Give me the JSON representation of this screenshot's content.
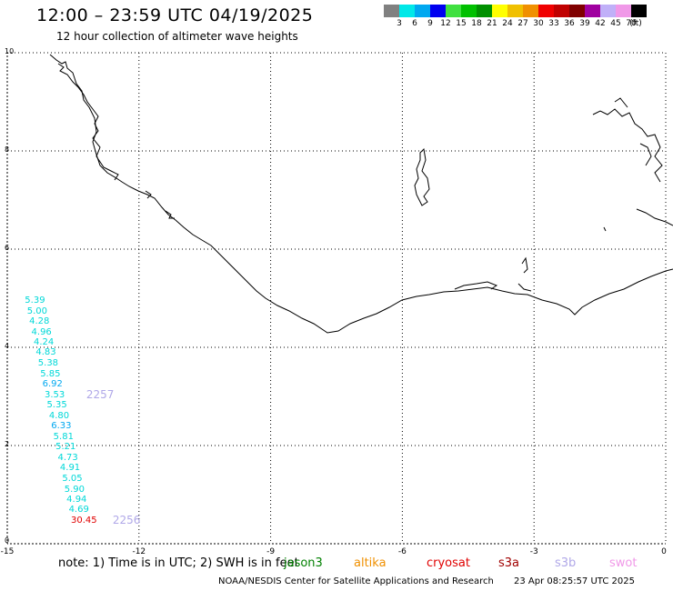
{
  "title": "12:00 – 23:59 UTC 04/19/2025",
  "subtitle": "12 hour collection of altimeter wave heights",
  "legend": {
    "colors": [
      "#808080",
      "#00e8e8",
      "#00a8f0",
      "#0000f0",
      "#40e040",
      "#00c000",
      "#009000",
      "#ffff00",
      "#f0c000",
      "#f09000",
      "#f00000",
      "#c00000",
      "#800000",
      "#a000a0",
      "#c0b0f8",
      "#f098e8",
      "#000000"
    ],
    "labels": [
      "3",
      "6",
      "9",
      "12",
      "15",
      "18",
      "21",
      "24",
      "27",
      "30",
      "33",
      "36",
      "39",
      "42",
      "45",
      "70",
      "(ft)"
    ]
  },
  "axes": {
    "x_ticks": [
      "-15",
      "-12",
      "-9",
      "-6",
      "-3",
      "0"
    ],
    "y_ticks": [
      "10",
      "8",
      "6",
      "4",
      "2",
      "0"
    ]
  },
  "swh_points": [
    {
      "lon": -14.6,
      "lat": 4.94,
      "value": "5.39",
      "color": "#00d8d8"
    },
    {
      "lon": -14.55,
      "lat": 4.73,
      "value": "5.00",
      "color": "#00d8d8"
    },
    {
      "lon": -14.5,
      "lat": 4.52,
      "value": "4.28",
      "color": "#00d8d8"
    },
    {
      "lon": -14.45,
      "lat": 4.3,
      "value": "4.96",
      "color": "#00d8d8"
    },
    {
      "lon": -14.4,
      "lat": 4.09,
      "value": "4.24",
      "color": "#00d8d8"
    },
    {
      "lon": -14.35,
      "lat": 3.88,
      "value": "4.83",
      "color": "#00d8d8"
    },
    {
      "lon": -14.3,
      "lat": 3.66,
      "value": "5.38",
      "color": "#00d8d8"
    },
    {
      "lon": -14.25,
      "lat": 3.45,
      "value": "5.85",
      "color": "#00d8d8"
    },
    {
      "lon": -14.2,
      "lat": 3.24,
      "value": "6.92",
      "color": "#00a8f0"
    },
    {
      "lon": -14.15,
      "lat": 3.02,
      "value": "3.53",
      "color": "#00d8d8"
    },
    {
      "lon": -14.1,
      "lat": 2.81,
      "value": "5.35",
      "color": "#00d8d8"
    },
    {
      "lon": -14.05,
      "lat": 2.6,
      "value": "4.80",
      "color": "#00d8d8"
    },
    {
      "lon": -14.0,
      "lat": 2.38,
      "value": "6.33",
      "color": "#00a8f0"
    },
    {
      "lon": -13.95,
      "lat": 2.17,
      "value": "5.81",
      "color": "#00d8d8"
    },
    {
      "lon": -13.9,
      "lat": 1.96,
      "value": "5.21",
      "color": "#00d8d8"
    },
    {
      "lon": -13.85,
      "lat": 1.74,
      "value": "4.73",
      "color": "#00d8d8"
    },
    {
      "lon": -13.8,
      "lat": 1.53,
      "value": "4.91",
      "color": "#00d8d8"
    },
    {
      "lon": -13.75,
      "lat": 1.32,
      "value": "5.05",
      "color": "#00d8d8"
    },
    {
      "lon": -13.7,
      "lat": 1.1,
      "value": "5.90",
      "color": "#00d8d8"
    },
    {
      "lon": -13.65,
      "lat": 0.89,
      "value": "4.94",
      "color": "#00d8d8"
    },
    {
      "lon": -13.6,
      "lat": 0.68,
      "value": "4.69",
      "color": "#00d8d8"
    },
    {
      "lon": -13.55,
      "lat": 0.46,
      "value": "30.45",
      "color": "#e00000"
    }
  ],
  "time_labels": [
    {
      "lon": -13.2,
      "lat": 3.02,
      "text": "2257"
    },
    {
      "lon": -12.6,
      "lat": 0.46,
      "text": "2256"
    }
  ],
  "note": "note: 1) Time is in UTC; 2) SWH is in feet",
  "satellites": [
    {
      "name": "jason3",
      "color": "#008000"
    },
    {
      "name": "altika",
      "color": "#f09000"
    },
    {
      "name": "cryosat",
      "color": "#e00000"
    },
    {
      "name": "s3a",
      "color": "#a00000"
    },
    {
      "name": "s3b",
      "color": "#b0a8e8"
    },
    {
      "name": "swot",
      "color": "#f098e8"
    }
  ],
  "footer": "NOAA/NESDIS Center for Satellite Applications and Research",
  "timestamp": "23 Apr 08:25:57 UTC 2025"
}
